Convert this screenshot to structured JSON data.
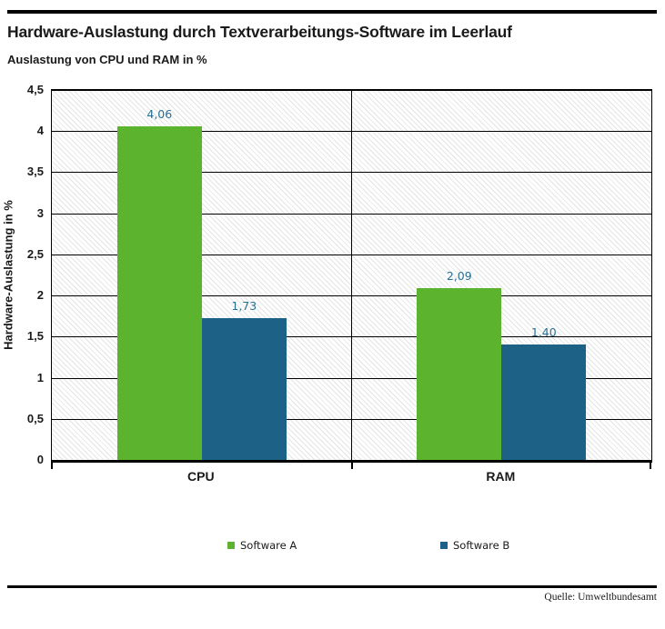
{
  "header": {
    "title": "Hardware-Auslastung durch Textverarbeitungs-Software im Leerlauf",
    "subtitle": "Auslastung von CPU und RAM in %"
  },
  "footer": {
    "source": "Quelle: Umweltbundesamt"
  },
  "chart_data": {
    "type": "bar",
    "title": "Hardware-Auslastung durch Textverarbeitungs-Software im Leerlauf",
    "subtitle": "Auslastung von CPU und RAM in %",
    "categories": [
      "CPU",
      "RAM"
    ],
    "series": [
      {
        "name": "Software A",
        "color": "#5cb32e",
        "values": [
          4.06,
          2.09
        ],
        "value_labels": [
          "4,06",
          "2,09"
        ]
      },
      {
        "name": "Software B",
        "color": "#1d6187",
        "values": [
          1.73,
          1.4
        ],
        "value_labels": [
          "1,73",
          "1,40"
        ]
      }
    ],
    "xlabel": "",
    "ylabel": "Hardware-Auslastung in %",
    "ylim": [
      0,
      4.5
    ],
    "ytick_step": 0.5,
    "yticks": [
      "4,5",
      "4",
      "3,5",
      "3",
      "2,5",
      "2",
      "1,5",
      "1",
      "0,5",
      "0"
    ],
    "grid": true,
    "hatched_background": true,
    "legend_position": "bottom",
    "value_label_color": "#267096",
    "axis_color": "#000000"
  }
}
